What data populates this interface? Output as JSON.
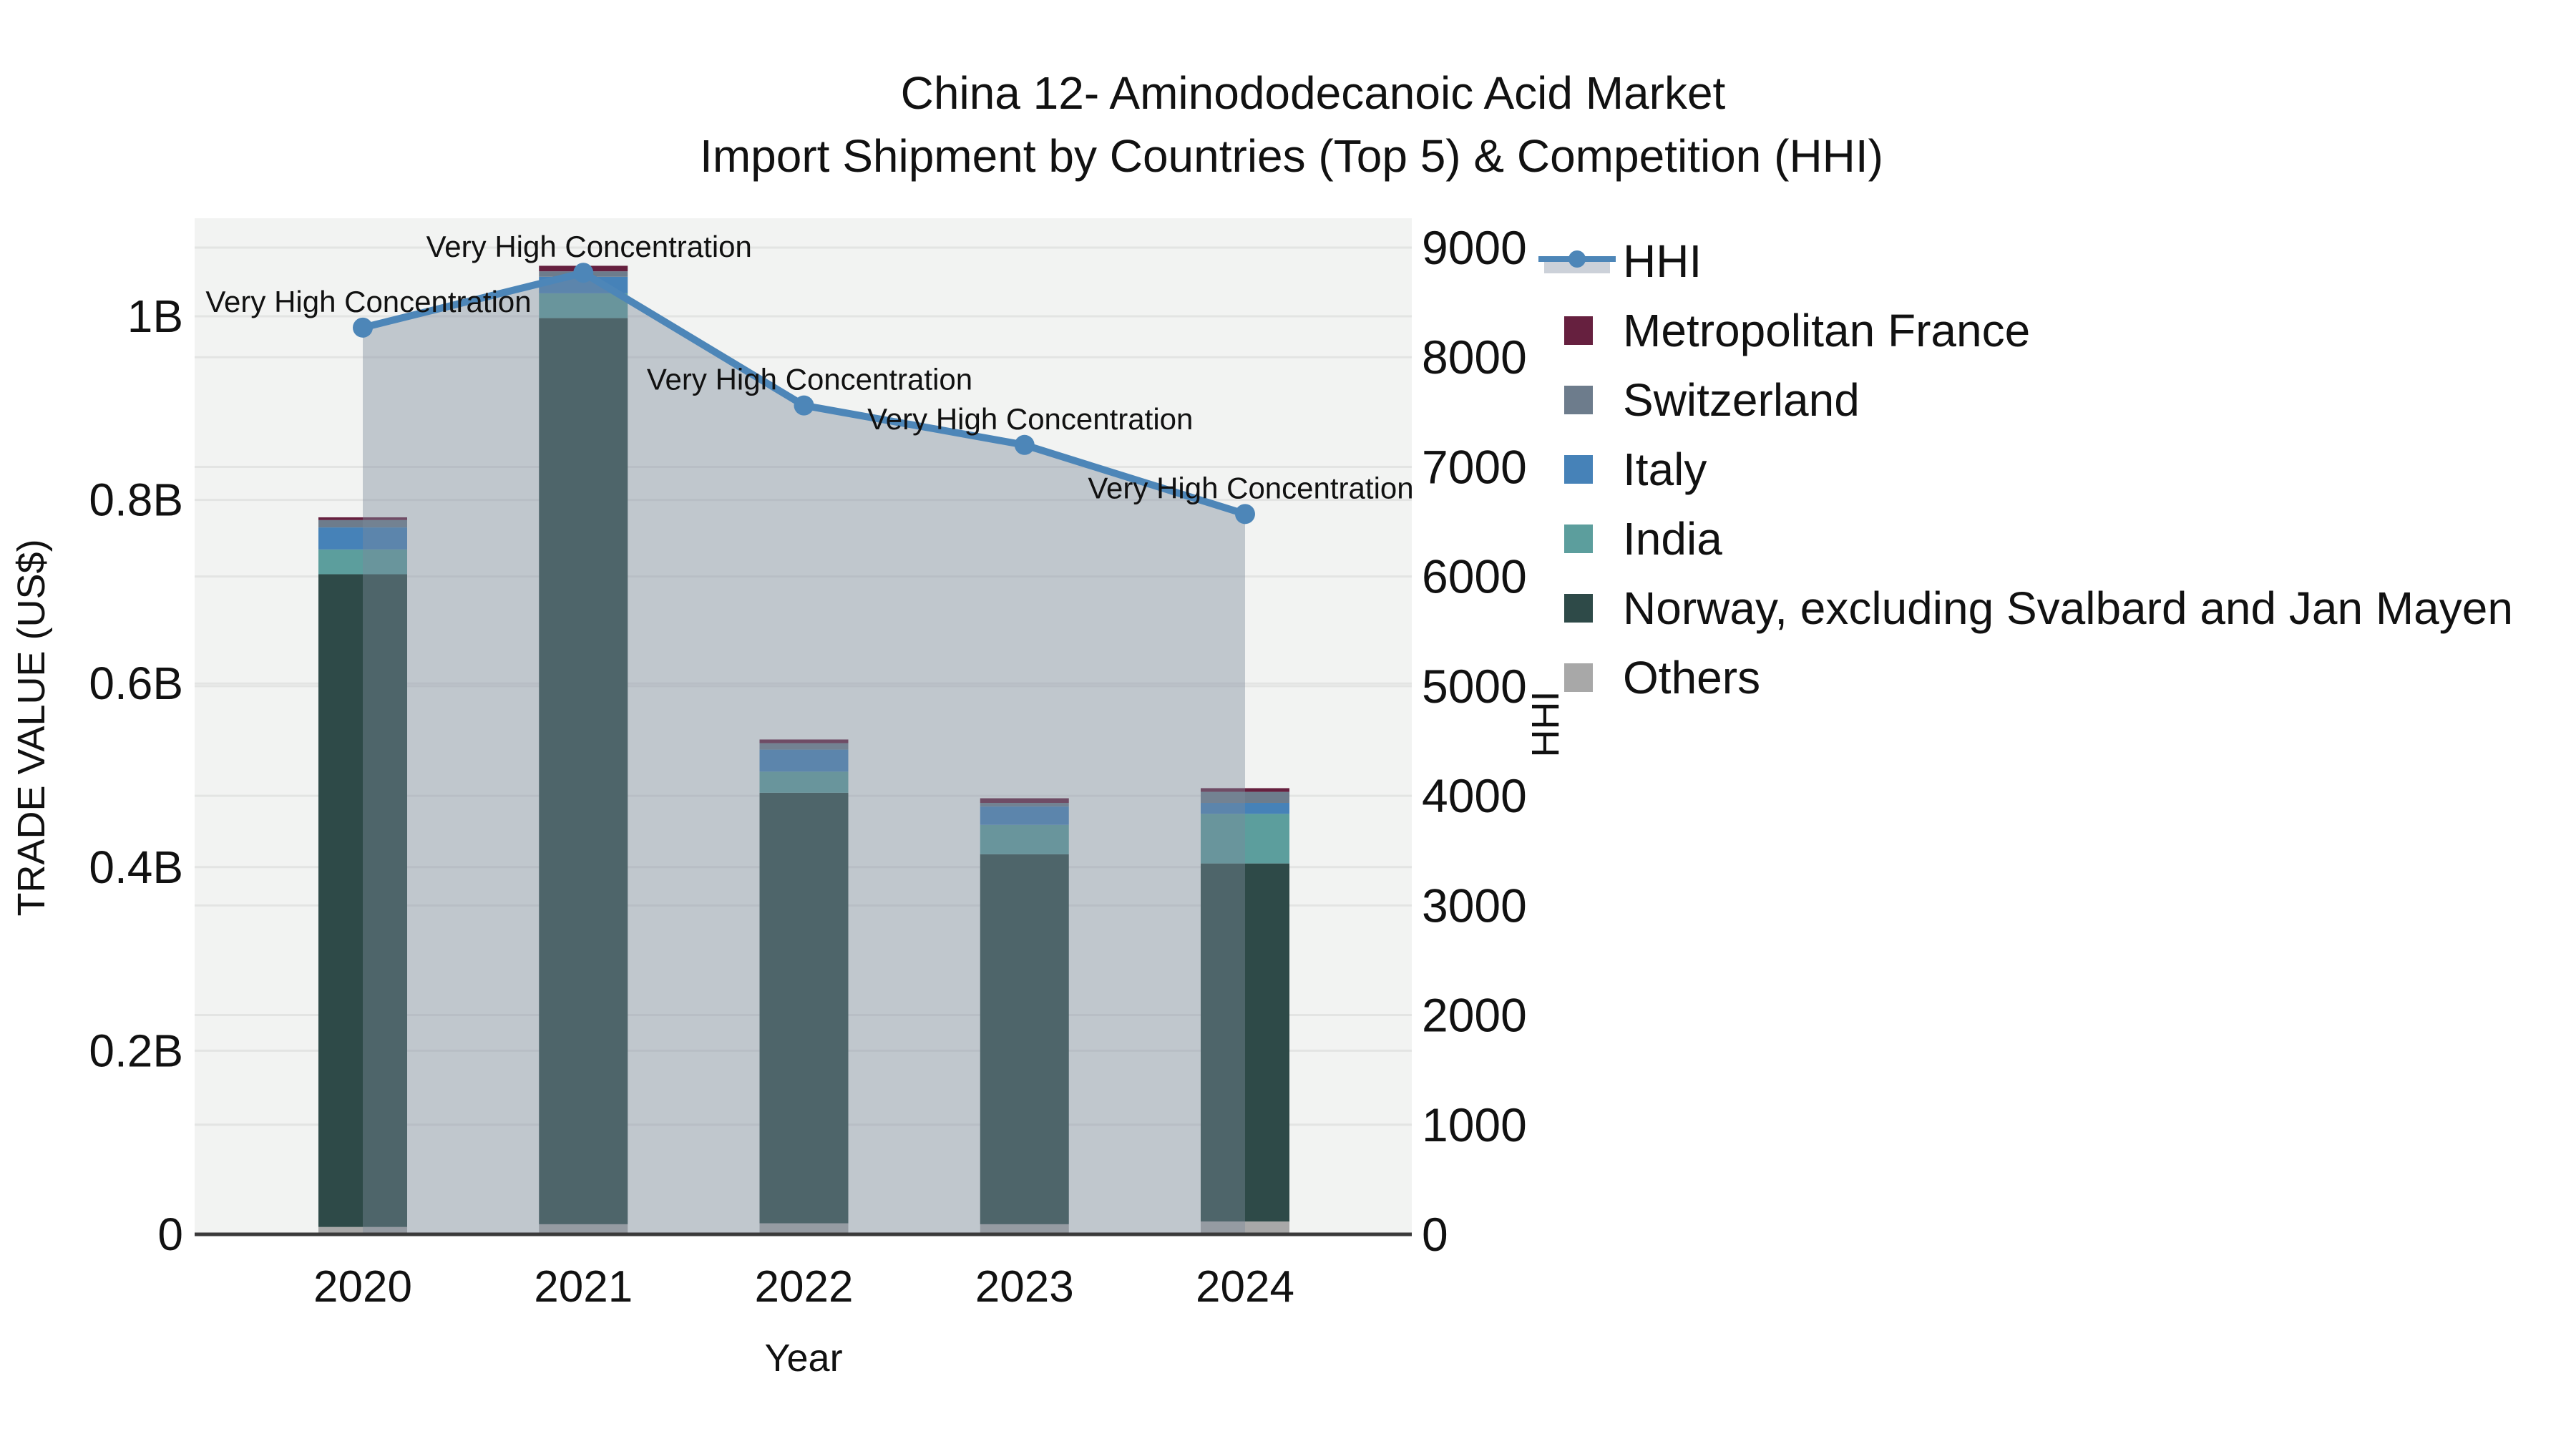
{
  "title": {
    "line1": "China 12- Aminododecanoic Acid Market",
    "line2": "Import Shipment by Countries (Top 5) & Competition (HHI)"
  },
  "axes": {
    "left": {
      "title": "TRADE VALUE (US$)",
      "tick_labels": [
        "0",
        "0.2B",
        "0.4B",
        "0.6B",
        "0.8B",
        "1B"
      ],
      "tick_values": [
        0,
        0.2,
        0.4,
        0.6,
        0.8,
        1.0
      ]
    },
    "right": {
      "title": "HHI",
      "tick_labels": [
        "0",
        "1000",
        "2000",
        "3000",
        "4000",
        "5000",
        "6000",
        "7000",
        "8000",
        "9000"
      ],
      "tick_values": [
        0,
        1000,
        2000,
        3000,
        4000,
        5000,
        6000,
        7000,
        8000,
        9000
      ]
    },
    "x": {
      "title": "Year",
      "categories": [
        "2020",
        "2021",
        "2022",
        "2023",
        "2024"
      ]
    }
  },
  "chart_data": {
    "type": "bar",
    "subtype": "stacked bars (trade value, left axis) + HHI line with gray area fill (right axis)",
    "categories": [
      "2020",
      "2021",
      "2022",
      "2023",
      "2024"
    ],
    "series": [
      {
        "name": "Others",
        "color": "#a8a8a8",
        "values_usd_billion": [
          0.008,
          0.011,
          0.012,
          0.011,
          0.014
        ]
      },
      {
        "name": "Norway, excluding Svalbard and Jan Mayen",
        "color": "#2e4a48",
        "values_usd_billion": [
          0.711,
          0.987,
          0.469,
          0.403,
          0.39
        ]
      },
      {
        "name": "India",
        "color": "#5c9e9d",
        "values_usd_billion": [
          0.027,
          0.027,
          0.023,
          0.032,
          0.054
        ]
      },
      {
        "name": "Italy",
        "color": "#4682b8",
        "values_usd_billion": [
          0.024,
          0.018,
          0.024,
          0.02,
          0.012
        ]
      },
      {
        "name": "Switzerland",
        "color": "#6d7c8c",
        "values_usd_billion": [
          0.008,
          0.006,
          0.007,
          0.004,
          0.012
        ]
      },
      {
        "name": "Metropolitan France",
        "color": "#66203f",
        "values_usd_billion": [
          0.003,
          0.006,
          0.004,
          0.005,
          0.004
        ]
      }
    ],
    "bar_totals_usd_billion": [
      0.781,
      1.055,
      0.539,
      0.475,
      0.486
    ],
    "line_series": {
      "name": "HHI",
      "color": "#4d86b8",
      "area_fill": "rgba(125,138,155,0.42)",
      "values": [
        8270,
        8770,
        7560,
        7200,
        6570
      ]
    },
    "annotations": [
      "Very High Concentration",
      "Very High Concentration",
      "Very High Concentration",
      "Very High Concentration",
      "Very High Concentration"
    ],
    "xlabel": "Year",
    "ylabel_left": "TRADE VALUE (US$)",
    "ylabel_right": "HHI",
    "ylim_left_billion": [
      0,
      1.107
    ],
    "ylim_right": [
      0,
      9268
    ],
    "grid": "horizontal gridlines for both y axes",
    "legend_position": "right"
  },
  "legend": [
    {
      "label": "HHI",
      "type": "line",
      "color": "#4d86b8",
      "band_color": "#ccd1d9"
    },
    {
      "label": "Metropolitan France",
      "type": "swatch",
      "color": "#66203f"
    },
    {
      "label": "Switzerland",
      "type": "swatch",
      "color": "#6d7c8c"
    },
    {
      "label": "Italy",
      "type": "swatch",
      "color": "#4682b8"
    },
    {
      "label": "India",
      "type": "swatch",
      "color": "#5c9e9d"
    },
    {
      "label": "Norway, excluding Svalbard and Jan Mayen",
      "type": "swatch",
      "color": "#2e4a48"
    },
    {
      "label": "Others",
      "type": "swatch",
      "color": "#a8a8a8"
    }
  ],
  "colors": {
    "plot_background": "#f2f3f2",
    "gridline": "#e3e4e3",
    "axis_line": "#3a3a3a",
    "text": "#111111"
  }
}
